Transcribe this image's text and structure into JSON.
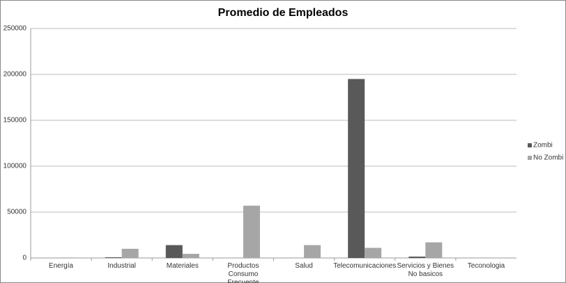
{
  "chart_data": {
    "type": "bar",
    "title": "Promedio de Empleados",
    "categories": [
      "Energía",
      "Industrial",
      "Materiales",
      "Productos Consumo Frecuente",
      "Salud",
      "Telecomunicaciones",
      "Servicios y Bienes No basicos",
      "Teconologia"
    ],
    "series": [
      {
        "name": "Zombi",
        "color": "#595959",
        "values": [
          0,
          800,
          14000,
          0,
          0,
          195000,
          1500,
          0
        ]
      },
      {
        "name": "No Zombi",
        "color": "#a6a6a6",
        "values": [
          500,
          10000,
          4500,
          57000,
          14000,
          11000,
          17000,
          0
        ]
      }
    ],
    "ylim": [
      0,
      250000
    ],
    "yticks": [
      0,
      50000,
      100000,
      150000,
      200000,
      250000
    ],
    "grid": true,
    "legend": "right"
  }
}
